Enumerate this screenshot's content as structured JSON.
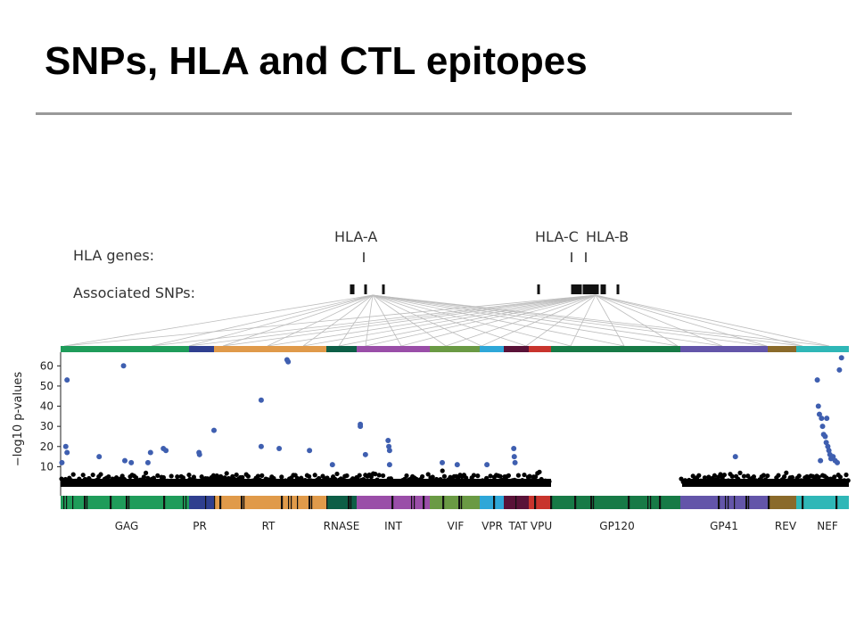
{
  "slide": {
    "title": "SNPs, HLA and CTL epitopes"
  },
  "colors": {
    "title_rule": "#999999",
    "grid_line": "#bdbdbd",
    "snp_point": "#000000",
    "significant_point": "#3f5fb0",
    "gene_colors": {
      "GAG": "#1f9c5a",
      "PR": "#2f3f8f",
      "RT": "#e09a4a",
      "RNASE": "#0d5e46",
      "INT": "#9a4ea8",
      "VIF": "#6a9a44",
      "VPR": "#2ea7d8",
      "TAT": "#5a1238",
      "VPU": "#c8342d",
      "GP120": "#177a46",
      "GP41": "#6355a9",
      "REV": "#8a6a2a",
      "NEF": "#2fb7b7"
    }
  },
  "chart_data": {
    "type": "scatter",
    "title": "",
    "xlabel": "",
    "ylabel": "−log10 p-values",
    "ylim": [
      0,
      65
    ],
    "yticks": [
      10,
      20,
      30,
      40,
      50,
      60
    ],
    "grid": false,
    "legend": "none",
    "hla_track": {
      "row_label": "HLA genes:",
      "genes": [
        {
          "name": "HLA-A"
        },
        {
          "name": "HLA-C"
        },
        {
          "name": "HLA-B"
        }
      ]
    },
    "snp_track": {
      "row_label": "Associated SNPs:"
    },
    "genes": [
      "GAG",
      "PR",
      "RT",
      "RNASE",
      "INT",
      "VIF",
      "VPR",
      "TAT",
      "VPU",
      "GP120",
      "GP41",
      "REV",
      "NEF"
    ],
    "gene_label_text": [
      "GAG",
      "PR",
      "RT",
      "RNASE",
      "INT",
      "VIF",
      "VPR",
      "TAT",
      "VPU",
      "GP120",
      "GP41",
      "REV",
      "NEF"
    ],
    "significant_points": [
      {
        "gene": "GAG",
        "pos": 0.01,
        "value": 12
      },
      {
        "gene": "GAG",
        "pos": 0.05,
        "value": 53
      },
      {
        "gene": "GAG",
        "pos": 0.04,
        "value": 20
      },
      {
        "gene": "GAG",
        "pos": 0.05,
        "value": 17
      },
      {
        "gene": "GAG",
        "pos": 0.3,
        "value": 15
      },
      {
        "gene": "GAG",
        "pos": 0.49,
        "value": 60
      },
      {
        "gene": "GAG",
        "pos": 0.5,
        "value": 13
      },
      {
        "gene": "GAG",
        "pos": 0.55,
        "value": 12
      },
      {
        "gene": "GAG",
        "pos": 0.68,
        "value": 12
      },
      {
        "gene": "GAG",
        "pos": 0.7,
        "value": 17
      },
      {
        "gene": "GAG",
        "pos": 0.8,
        "value": 19
      },
      {
        "gene": "GAG",
        "pos": 0.82,
        "value": 18
      },
      {
        "gene": "PR",
        "pos": 0.4,
        "value": 17
      },
      {
        "gene": "PR",
        "pos": 0.42,
        "value": 16
      },
      {
        "gene": "RT",
        "pos": 0.0,
        "value": 28
      },
      {
        "gene": "RT",
        "pos": 0.42,
        "value": 43
      },
      {
        "gene": "RT",
        "pos": 0.42,
        "value": 20
      },
      {
        "gene": "RT",
        "pos": 0.58,
        "value": 19
      },
      {
        "gene": "RT",
        "pos": 0.65,
        "value": 63
      },
      {
        "gene": "RT",
        "pos": 0.66,
        "value": 62
      },
      {
        "gene": "RT",
        "pos": 0.85,
        "value": 18
      },
      {
        "gene": "RNASE",
        "pos": 0.2,
        "value": 11
      },
      {
        "gene": "INT",
        "pos": 0.05,
        "value": 31
      },
      {
        "gene": "INT",
        "pos": 0.05,
        "value": 30
      },
      {
        "gene": "INT",
        "pos": 0.12,
        "value": 16
      },
      {
        "gene": "INT",
        "pos": 0.43,
        "value": 23
      },
      {
        "gene": "INT",
        "pos": 0.44,
        "value": 20
      },
      {
        "gene": "INT",
        "pos": 0.45,
        "value": 18
      },
      {
        "gene": "INT",
        "pos": 0.45,
        "value": 11
      },
      {
        "gene": "VIF",
        "pos": 0.25,
        "value": 12
      },
      {
        "gene": "VIF",
        "pos": 0.55,
        "value": 11
      },
      {
        "gene": "VPR",
        "pos": 0.3,
        "value": 11
      },
      {
        "gene": "TAT",
        "pos": 0.4,
        "value": 19
      },
      {
        "gene": "TAT",
        "pos": 0.42,
        "value": 15
      },
      {
        "gene": "TAT",
        "pos": 0.45,
        "value": 12
      },
      {
        "gene": "GP41",
        "pos": 0.63,
        "value": 15
      },
      {
        "gene": "NEF",
        "pos": 0.4,
        "value": 53
      },
      {
        "gene": "NEF",
        "pos": 0.42,
        "value": 40
      },
      {
        "gene": "NEF",
        "pos": 0.44,
        "value": 36
      },
      {
        "gene": "NEF",
        "pos": 0.48,
        "value": 34
      },
      {
        "gene": "NEF",
        "pos": 0.5,
        "value": 30
      },
      {
        "gene": "NEF",
        "pos": 0.52,
        "value": 26
      },
      {
        "gene": "NEF",
        "pos": 0.55,
        "value": 25
      },
      {
        "gene": "NEF",
        "pos": 0.57,
        "value": 22
      },
      {
        "gene": "NEF",
        "pos": 0.6,
        "value": 20
      },
      {
        "gene": "NEF",
        "pos": 0.62,
        "value": 18
      },
      {
        "gene": "NEF",
        "pos": 0.64,
        "value": 16
      },
      {
        "gene": "NEF",
        "pos": 0.66,
        "value": 14
      },
      {
        "gene": "NEF",
        "pos": 0.7,
        "value": 15
      },
      {
        "gene": "NEF",
        "pos": 0.74,
        "value": 13
      },
      {
        "gene": "NEF",
        "pos": 0.46,
        "value": 13
      },
      {
        "gene": "NEF",
        "pos": 0.58,
        "value": 34
      },
      {
        "gene": "NEF",
        "pos": 0.78,
        "value": 12
      },
      {
        "gene": "NEF",
        "pos": 0.82,
        "value": 58
      },
      {
        "gene": "NEF",
        "pos": 0.86,
        "value": 64
      }
    ],
    "background_snps": {
      "max_value": 8,
      "typical_value": 5,
      "note_gap_gene": "GP120"
    }
  }
}
